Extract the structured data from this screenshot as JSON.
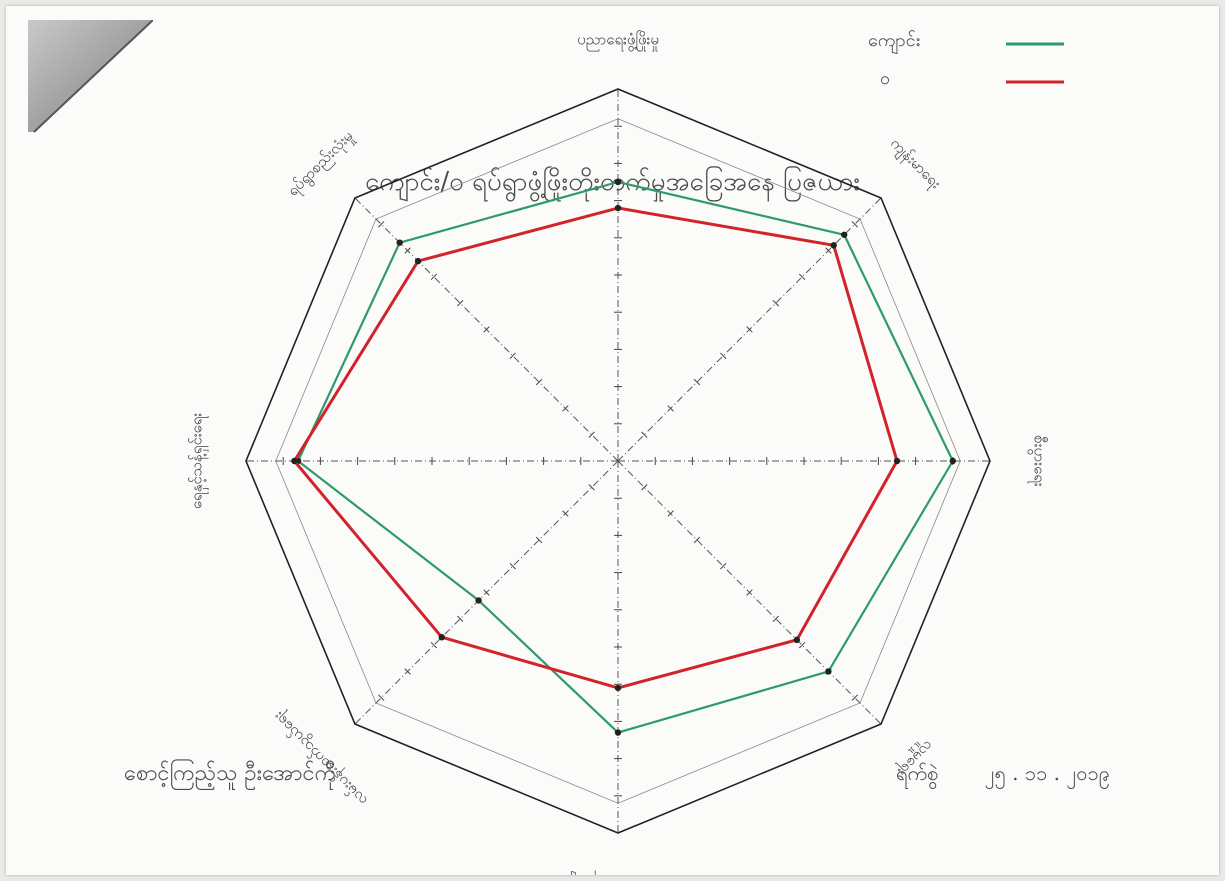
{
  "chart_data": {
    "type": "radar",
    "title": "ကျောင်း/ဝ ရပ်ရွာဖွံ့ဖြိုးတိုးတက်မှုအခြေအနေ ပြဇယား",
    "axes": [
      "ပညာရေးဖွံ့ဖြိုးမှု",
      "ကျန်းမာရေး",
      "စီးပွားရေး",
      "လူမှုရေး",
      "သဘာဝပတ်ဝန်းကျင်",
      "လမ်းပန်းဆက်သွယ်ရေး",
      "ရေနှင့်သန့်ရှင်းရေး",
      "ရပ်ရွာစည်းလုံးမှု"
    ],
    "rlim": [
      0,
      10
    ],
    "grid": true,
    "legend_position": "top-right",
    "series": [
      {
        "name": "ကျောင်း",
        "color": "#2e9a6e",
        "values": [
          7.5,
          8.6,
          9.0,
          8.0,
          7.3,
          5.3,
          8.6,
          8.3
        ]
      },
      {
        "name": "ဝ",
        "color": "#d2232a",
        "values": [
          6.8,
          8.2,
          7.5,
          6.8,
          6.1,
          6.7,
          8.7,
          7.6
        ]
      }
    ]
  },
  "footer": {
    "left_text": "စောင့်ကြည့်သူ ဦးအောင်ကို",
    "right_label": "ရက်စွဲ",
    "right_value": "၂၅ . ၁၁ . ၂၀၁၉"
  }
}
